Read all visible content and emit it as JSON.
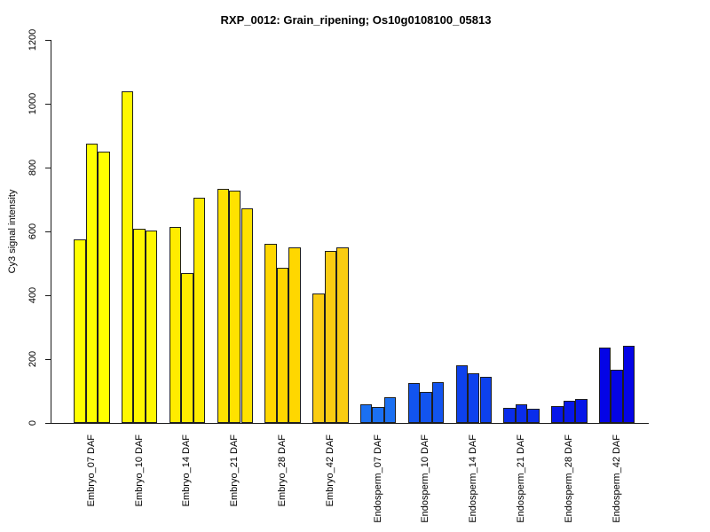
{
  "chart_data": {
    "type": "bar",
    "title": "RXP_0012: Grain_ripening; Os10g0108100_05813",
    "xlabel": "",
    "ylabel": "Cy3 signal intensity",
    "ylim": [
      0,
      1200
    ],
    "yticks": [
      "0",
      "200",
      "400",
      "600",
      "800",
      "1000",
      "1200"
    ],
    "grid": false,
    "legend": "none",
    "bars_per_group": 3,
    "groups": [
      {
        "label": "Embryo_07 DAF",
        "color": "#FFFF00",
        "values": [
          575,
          876,
          850
        ]
      },
      {
        "label": "Embryo_10 DAF",
        "color": "#FFF700",
        "values": [
          1040,
          607,
          603
        ]
      },
      {
        "label": "Embryo_14 DAF",
        "color": "#FFEC00",
        "values": [
          615,
          470,
          706
        ]
      },
      {
        "label": "Embryo_21 DAF",
        "color": "#FFE200",
        "values": [
          733,
          728,
          672
        ]
      },
      {
        "label": "Embryo_28 DAF",
        "color": "#FFD700",
        "values": [
          562,
          487,
          551
        ]
      },
      {
        "label": "Embryo_42 DAF",
        "color": "#FACC12",
        "values": [
          406,
          538,
          550
        ]
      },
      {
        "label": "Endosperm_07 DAF",
        "color": "#1B70F2",
        "values": [
          57,
          50,
          80
        ]
      },
      {
        "label": "Endosperm_10 DAF",
        "color": "#1254EF",
        "values": [
          125,
          97,
          127
        ]
      },
      {
        "label": "Endosperm_14 DAF",
        "color": "#0D41ED",
        "values": [
          181,
          155,
          145
        ]
      },
      {
        "label": "Endosperm_21 DAF",
        "color": "#0A2DEB",
        "values": [
          46,
          58,
          45
        ]
      },
      {
        "label": "Endosperm_28 DAF",
        "color": "#0717E9",
        "values": [
          52,
          70,
          76
        ]
      },
      {
        "label": "Endosperm_42 DAF",
        "color": "#0404E6",
        "values": [
          236,
          167,
          243
        ]
      }
    ]
  }
}
